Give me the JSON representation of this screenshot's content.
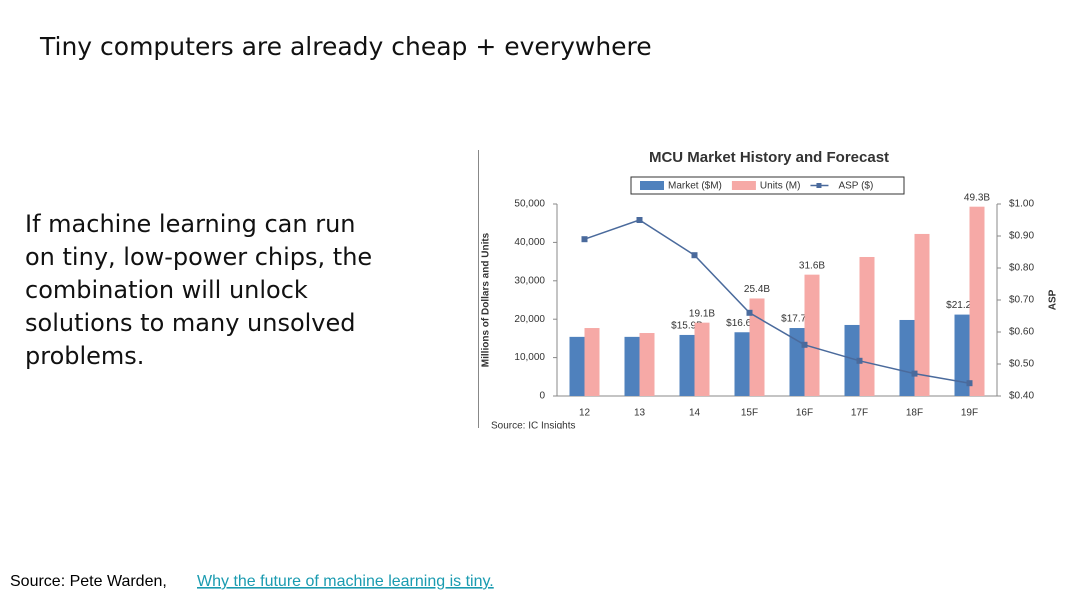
{
  "slide": {
    "title": "Tiny computers are already cheap + everywhere",
    "body_lines": [
      "If machine learning can run",
      "on tiny, low-power chips, the",
      "combination will unlock",
      "solutions to many unsolved",
      "problems."
    ],
    "footer_label": "Source:  Pete Warden,",
    "footer_link": "Why the future of machine learning is tiny."
  },
  "chart_data": {
    "type": "bar",
    "title": "MCU Market History and Forecast",
    "y_label": "Millions of Dollars and Units",
    "y2_label": "ASP",
    "source": "Source: IC Insights",
    "categories": [
      "12",
      "13",
      "14",
      "15F",
      "16F",
      "17F",
      "18F",
      "19F"
    ],
    "series": [
      {
        "name": "Market ($M)",
        "color": "#4f81bd",
        "values": [
          15400,
          15400,
          15900,
          16600,
          17700,
          18500,
          19800,
          21200
        ],
        "value_labels": [
          null,
          null,
          "$15.9B",
          "$16.6B",
          "$17.7B",
          null,
          null,
          "$21.2B"
        ]
      },
      {
        "name": "Units (M)",
        "color": "#f6a9a6",
        "values": [
          17700,
          16400,
          19100,
          25400,
          31600,
          36200,
          42200,
          49300
        ],
        "value_labels": [
          null,
          null,
          "19.1B",
          "25.4B",
          "31.6B",
          null,
          null,
          "49.3B"
        ]
      },
      {
        "name": "ASP ($)",
        "color": "#4a6a9c",
        "type": "line",
        "axis": "y2",
        "values": [
          0.89,
          0.95,
          0.84,
          0.66,
          0.56,
          0.51,
          0.47,
          0.44
        ]
      }
    ],
    "ylim": [
      0,
      50000
    ],
    "yticks": [
      0,
      {
        "value": 10000,
        "label": "10,000"
      },
      {
        "value": 20000,
        "label": "20,000"
      },
      {
        "value": 30000,
        "label": "30,000"
      },
      {
        "value": 40000,
        "label": "40,000"
      },
      {
        "value": 50000,
        "label": "50,000"
      }
    ],
    "y2lim": [
      0.4,
      1.0
    ],
    "y2ticks": [
      {
        "value": 0.4,
        "label": "$0.40"
      },
      {
        "value": 0.5,
        "label": "$0.50"
      },
      {
        "value": 0.6,
        "label": "$0.60"
      },
      {
        "value": 0.7,
        "label": "$0.70"
      },
      {
        "value": 0.8,
        "label": "$0.80"
      },
      {
        "value": 0.9,
        "label": "$0.90"
      },
      {
        "value": 1.0,
        "label": "$1.00"
      }
    ],
    "legend": "top"
  }
}
